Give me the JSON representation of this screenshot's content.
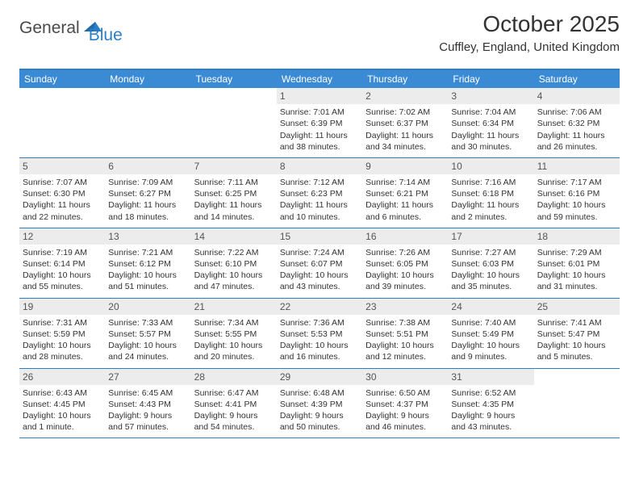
{
  "logo": {
    "part1": "General",
    "part2": "Blue"
  },
  "title": "October 2025",
  "location": "Cuffley, England, United Kingdom",
  "colors": {
    "header_bg": "#3b8bd4",
    "border": "#2a7fc9",
    "daynum_bg": "#ececec",
    "text": "#333333"
  },
  "weekdays": [
    "Sunday",
    "Monday",
    "Tuesday",
    "Wednesday",
    "Thursday",
    "Friday",
    "Saturday"
  ],
  "weeks": [
    [
      {},
      {},
      {},
      {
        "n": "1",
        "sr": "7:01 AM",
        "ss": "6:39 PM",
        "dl": "11 hours and 38 minutes."
      },
      {
        "n": "2",
        "sr": "7:02 AM",
        "ss": "6:37 PM",
        "dl": "11 hours and 34 minutes."
      },
      {
        "n": "3",
        "sr": "7:04 AM",
        "ss": "6:34 PM",
        "dl": "11 hours and 30 minutes."
      },
      {
        "n": "4",
        "sr": "7:06 AM",
        "ss": "6:32 PM",
        "dl": "11 hours and 26 minutes."
      }
    ],
    [
      {
        "n": "5",
        "sr": "7:07 AM",
        "ss": "6:30 PM",
        "dl": "11 hours and 22 minutes."
      },
      {
        "n": "6",
        "sr": "7:09 AM",
        "ss": "6:27 PM",
        "dl": "11 hours and 18 minutes."
      },
      {
        "n": "7",
        "sr": "7:11 AM",
        "ss": "6:25 PM",
        "dl": "11 hours and 14 minutes."
      },
      {
        "n": "8",
        "sr": "7:12 AM",
        "ss": "6:23 PM",
        "dl": "11 hours and 10 minutes."
      },
      {
        "n": "9",
        "sr": "7:14 AM",
        "ss": "6:21 PM",
        "dl": "11 hours and 6 minutes."
      },
      {
        "n": "10",
        "sr": "7:16 AM",
        "ss": "6:18 PM",
        "dl": "11 hours and 2 minutes."
      },
      {
        "n": "11",
        "sr": "7:17 AM",
        "ss": "6:16 PM",
        "dl": "10 hours and 59 minutes."
      }
    ],
    [
      {
        "n": "12",
        "sr": "7:19 AM",
        "ss": "6:14 PM",
        "dl": "10 hours and 55 minutes."
      },
      {
        "n": "13",
        "sr": "7:21 AM",
        "ss": "6:12 PM",
        "dl": "10 hours and 51 minutes."
      },
      {
        "n": "14",
        "sr": "7:22 AM",
        "ss": "6:10 PM",
        "dl": "10 hours and 47 minutes."
      },
      {
        "n": "15",
        "sr": "7:24 AM",
        "ss": "6:07 PM",
        "dl": "10 hours and 43 minutes."
      },
      {
        "n": "16",
        "sr": "7:26 AM",
        "ss": "6:05 PM",
        "dl": "10 hours and 39 minutes."
      },
      {
        "n": "17",
        "sr": "7:27 AM",
        "ss": "6:03 PM",
        "dl": "10 hours and 35 minutes."
      },
      {
        "n": "18",
        "sr": "7:29 AM",
        "ss": "6:01 PM",
        "dl": "10 hours and 31 minutes."
      }
    ],
    [
      {
        "n": "19",
        "sr": "7:31 AM",
        "ss": "5:59 PM",
        "dl": "10 hours and 28 minutes."
      },
      {
        "n": "20",
        "sr": "7:33 AM",
        "ss": "5:57 PM",
        "dl": "10 hours and 24 minutes."
      },
      {
        "n": "21",
        "sr": "7:34 AM",
        "ss": "5:55 PM",
        "dl": "10 hours and 20 minutes."
      },
      {
        "n": "22",
        "sr": "7:36 AM",
        "ss": "5:53 PM",
        "dl": "10 hours and 16 minutes."
      },
      {
        "n": "23",
        "sr": "7:38 AM",
        "ss": "5:51 PM",
        "dl": "10 hours and 12 minutes."
      },
      {
        "n": "24",
        "sr": "7:40 AM",
        "ss": "5:49 PM",
        "dl": "10 hours and 9 minutes."
      },
      {
        "n": "25",
        "sr": "7:41 AM",
        "ss": "5:47 PM",
        "dl": "10 hours and 5 minutes."
      }
    ],
    [
      {
        "n": "26",
        "sr": "6:43 AM",
        "ss": "4:45 PM",
        "dl": "10 hours and 1 minute."
      },
      {
        "n": "27",
        "sr": "6:45 AM",
        "ss": "4:43 PM",
        "dl": "9 hours and 57 minutes."
      },
      {
        "n": "28",
        "sr": "6:47 AM",
        "ss": "4:41 PM",
        "dl": "9 hours and 54 minutes."
      },
      {
        "n": "29",
        "sr": "6:48 AM",
        "ss": "4:39 PM",
        "dl": "9 hours and 50 minutes."
      },
      {
        "n": "30",
        "sr": "6:50 AM",
        "ss": "4:37 PM",
        "dl": "9 hours and 46 minutes."
      },
      {
        "n": "31",
        "sr": "6:52 AM",
        "ss": "4:35 PM",
        "dl": "9 hours and 43 minutes."
      },
      {}
    ]
  ]
}
